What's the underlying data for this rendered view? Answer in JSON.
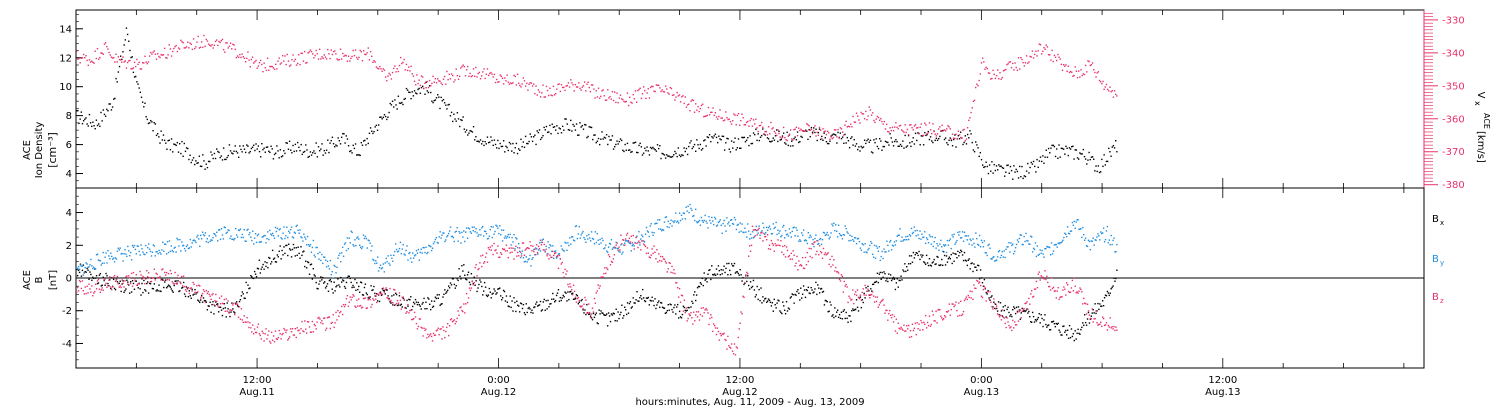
{
  "colors": {
    "black": "#000000",
    "pink": "#e8336a",
    "blue": "#1f8ee0"
  },
  "x_axis": {
    "title": "hours:minutes, Aug. 11, 2009 - Aug. 13, 2009",
    "range_hours": [
      3,
      70
    ],
    "major_ticks": [
      {
        "hour": 12,
        "time": "12:00",
        "date": "Aug.11"
      },
      {
        "hour": 24,
        "time": "0:00",
        "date": "Aug.12"
      },
      {
        "hour": 36,
        "time": "12:00",
        "date": "Aug.12"
      },
      {
        "hour": 48,
        "time": "0:00",
        "date": "Aug.13"
      },
      {
        "hour": 60,
        "time": "12:00",
        "date": "Aug.13"
      }
    ]
  },
  "chart_data": [
    {
      "type": "scatter",
      "panel": "top",
      "ylabel_left": [
        "ACE",
        "Ion Density",
        "[cm⁻³]"
      ],
      "ylabel_right": [
        "V",
        "x",
        "ACE",
        "[km/s]"
      ],
      "ylim_left": [
        3,
        15.3
      ],
      "ylim_right": [
        -381,
        -327
      ],
      "yticks_left": [
        4,
        6,
        8,
        10,
        12,
        14
      ],
      "yticks_right": [
        -330,
        -340,
        -350,
        -360,
        -370,
        -380
      ],
      "series": [
        {
          "axis": "left",
          "color": "#000000",
          "x": [
            3.0,
            4.0,
            4.8,
            5.5,
            6.0,
            6.5,
            7.0,
            7.6,
            8.2,
            8.8,
            9.4,
            10.0,
            10.8,
            11.5,
            12.3,
            13.0,
            13.8,
            14.6,
            15.4,
            16.2,
            17.0,
            17.8,
            18.5,
            19.1,
            19.7,
            20.3,
            21.0,
            21.8,
            22.6,
            23.4,
            24.2,
            25.0,
            25.8,
            26.6,
            27.4,
            28.2,
            29.0,
            29.8,
            30.6,
            31.4,
            32.2,
            33.0,
            33.8,
            34.6,
            35.4,
            36.2,
            37.0,
            37.8,
            38.6,
            39.4,
            40.2,
            41.0,
            41.8,
            42.6,
            43.4,
            44.2,
            45.0,
            45.8,
            46.6,
            47.4,
            48.2,
            49.0,
            49.8,
            50.6,
            51.4,
            52.2,
            53.0,
            53.8,
            54.7
          ],
          "y": [
            8.0,
            7.5,
            9.0,
            14.0,
            10.0,
            8.0,
            6.8,
            6.0,
            5.8,
            5.2,
            4.8,
            5.4,
            5.6,
            5.6,
            5.7,
            5.5,
            5.9,
            5.6,
            5.8,
            6.5,
            5.5,
            7.2,
            8.4,
            9.2,
            9.8,
            10.0,
            9.0,
            8.0,
            7.0,
            6.3,
            6.0,
            5.9,
            6.5,
            7.2,
            7.4,
            7.0,
            6.5,
            6.1,
            5.8,
            5.6,
            5.5,
            5.7,
            6.0,
            6.5,
            6.0,
            6.3,
            6.8,
            6.6,
            6.4,
            6.9,
            6.5,
            6.6,
            6.0,
            5.9,
            6.3,
            6.2,
            6.5,
            6.7,
            6.3,
            6.6,
            4.5,
            4.2,
            4.1,
            4.4,
            5.5,
            5.6,
            5.4,
            4.5,
            6.0
          ]
        },
        {
          "axis": "right",
          "color": "#e8336a",
          "x": [
            3.0,
            3.7,
            4.4,
            5.0,
            5.6,
            6.2,
            6.8,
            7.4,
            8.0,
            8.8,
            9.6,
            10.4,
            11.2,
            12.0,
            12.8,
            13.6,
            14.4,
            15.2,
            16.0,
            16.8,
            17.6,
            18.4,
            19.2,
            20.0,
            20.8,
            21.6,
            22.4,
            23.2,
            24.0,
            24.8,
            25.6,
            26.4,
            27.2,
            28.0,
            28.8,
            29.6,
            30.4,
            31.2,
            32.0,
            32.8,
            33.6,
            34.4,
            35.2,
            36.0,
            36.8,
            37.6,
            38.4,
            39.2,
            40.0,
            40.8,
            41.6,
            42.4,
            43.2,
            44.0,
            44.8,
            45.6,
            46.4,
            47.2,
            48.0,
            48.6,
            49.2,
            49.8,
            50.4,
            51.0,
            51.6,
            52.2,
            52.8,
            53.4,
            54.0,
            54.7
          ],
          "y": [
            -341,
            -342,
            -338,
            -342,
            -343,
            -343,
            -341,
            -340,
            -338,
            -337,
            -336,
            -338,
            -340,
            -344,
            -343,
            -342,
            -341,
            -340,
            -340,
            -341,
            -340,
            -348,
            -342,
            -349,
            -348,
            -347,
            -345,
            -346,
            -348,
            -348,
            -350,
            -352,
            -350,
            -349,
            -352,
            -353,
            -354,
            -352,
            -351,
            -353,
            -356,
            -358,
            -359,
            -360,
            -362,
            -363,
            -365,
            -363,
            -364,
            -365,
            -360,
            -358,
            -362,
            -363,
            -363,
            -363,
            -364,
            -365,
            -343,
            -347,
            -345,
            -343,
            -341,
            -338,
            -341,
            -345,
            -346,
            -343,
            -349,
            -352
          ]
        }
      ]
    },
    {
      "type": "scatter",
      "panel": "bottom",
      "ylabel_left": [
        "ACE",
        "B",
        "[nT]"
      ],
      "ylim": [
        -5.5,
        5.5
      ],
      "yticks": [
        -4,
        -2,
        0,
        2,
        4
      ],
      "legend": [
        "B",
        "B",
        "B"
      ],
      "legend_sub": [
        "x",
        "y",
        "z"
      ],
      "series": [
        {
          "color": "#000000",
          "x": [
            3.0,
            3.8,
            4.6,
            5.4,
            6.2,
            7.0,
            7.8,
            8.6,
            9.4,
            10.2,
            11.0,
            11.8,
            12.6,
            13.4,
            14.2,
            15.0,
            15.8,
            16.6,
            17.4,
            18.2,
            19.0,
            19.8,
            20.6,
            21.4,
            22.2,
            23.0,
            23.8,
            24.6,
            25.4,
            26.2,
            27.0,
            27.8,
            28.6,
            29.4,
            30.2,
            31.0,
            31.8,
            32.6,
            33.4,
            34.2,
            35.0,
            35.8,
            36.6,
            37.4,
            38.2,
            39.0,
            39.8,
            40.6,
            41.4,
            42.2,
            43.0,
            43.8,
            44.6,
            45.4,
            46.2,
            47.0,
            47.8,
            48.6,
            49.4,
            50.2,
            51.0,
            51.8,
            52.6,
            53.4,
            54.2,
            54.7
          ],
          "y": [
            0.6,
            0.2,
            -0.2,
            -0.4,
            -0.6,
            -0.3,
            -0.5,
            -0.7,
            -1.5,
            -2.0,
            -1.8,
            0.4,
            1.2,
            1.8,
            1.5,
            -0.3,
            -0.5,
            -0.2,
            -0.8,
            -1.0,
            -1.3,
            -1.5,
            -1.6,
            -1.0,
            0.6,
            -0.5,
            -0.8,
            -1.5,
            -2.0,
            -1.6,
            -1.0,
            -1.3,
            -2.2,
            -2.5,
            -2.0,
            -1.0,
            -1.6,
            -1.8,
            -2.2,
            0.2,
            0.5,
            0.6,
            -0.5,
            -1.5,
            -1.8,
            -0.8,
            -0.6,
            -2.0,
            -2.3,
            -1.0,
            0.4,
            -0.4,
            1.6,
            0.9,
            1.3,
            1.4,
            0.6,
            -1.8,
            -2.0,
            -2.2,
            -2.5,
            -3.0,
            -3.4,
            -2.2,
            -1.2,
            0.5
          ]
        },
        {
          "color": "#1f8ee0",
          "x": [
            3.0,
            3.8,
            4.6,
            5.4,
            6.2,
            7.0,
            7.8,
            8.6,
            9.4,
            10.2,
            11.0,
            11.8,
            12.6,
            13.4,
            14.2,
            15.0,
            15.8,
            16.6,
            17.4,
            18.2,
            19.0,
            19.8,
            20.6,
            21.4,
            22.2,
            23.0,
            23.8,
            24.6,
            25.4,
            26.2,
            27.0,
            27.8,
            28.6,
            29.4,
            30.2,
            31.0,
            31.8,
            32.6,
            33.4,
            34.2,
            35.0,
            35.8,
            36.6,
            37.4,
            38.2,
            39.0,
            39.8,
            40.6,
            41.4,
            42.2,
            43.0,
            43.8,
            44.6,
            45.4,
            46.2,
            47.0,
            47.8,
            48.6,
            49.4,
            50.2,
            51.0,
            51.8,
            52.6,
            53.4,
            54.2,
            54.7
          ],
          "y": [
            0.4,
            0.9,
            1.4,
            1.5,
            1.7,
            1.8,
            2.0,
            2.1,
            2.5,
            2.8,
            2.7,
            2.5,
            2.6,
            2.9,
            2.8,
            1.5,
            0.4,
            2.5,
            2.2,
            0.5,
            2.0,
            1.2,
            2.0,
            2.8,
            2.6,
            2.8,
            2.9,
            2.5,
            1.0,
            2.0,
            1.5,
            2.8,
            2.6,
            2.0,
            1.8,
            2.5,
            3.2,
            3.6,
            4.2,
            3.5,
            3.2,
            3.4,
            2.7,
            3.2,
            2.9,
            2.6,
            2.2,
            3.0,
            2.7,
            2.0,
            1.5,
            2.6,
            2.8,
            2.4,
            2.0,
            2.6,
            2.3,
            1.5,
            1.8,
            2.5,
            1.4,
            2.3,
            3.5,
            2.0,
            2.8,
            1.8
          ]
        },
        {
          "color": "#e8336a",
          "x": [
            3.0,
            3.8,
            4.6,
            5.4,
            6.2,
            7.0,
            7.8,
            8.6,
            9.4,
            10.2,
            11.0,
            11.8,
            12.6,
            13.4,
            14.2,
            15.0,
            15.8,
            16.6,
            17.4,
            18.2,
            19.0,
            19.8,
            20.6,
            21.4,
            22.2,
            23.0,
            23.8,
            24.6,
            25.4,
            26.2,
            27.0,
            27.8,
            28.6,
            29.4,
            30.2,
            31.0,
            31.8,
            32.6,
            33.4,
            34.2,
            35.0,
            35.8,
            36.6,
            37.4,
            38.2,
            39.0,
            39.8,
            40.6,
            41.4,
            42.2,
            43.0,
            43.8,
            44.6,
            45.4,
            46.2,
            47.0,
            47.8,
            48.6,
            49.4,
            50.2,
            51.0,
            51.8,
            52.6,
            53.4,
            54.2,
            54.7
          ],
          "y": [
            -0.4,
            -0.6,
            -0.3,
            -0.1,
            0.0,
            0.2,
            0.1,
            -0.5,
            -1.0,
            -1.5,
            -2.0,
            -3.0,
            -3.6,
            -3.4,
            -3.0,
            -2.8,
            -2.6,
            -1.2,
            -1.5,
            -0.9,
            -1.2,
            -2.5,
            -3.6,
            -3.2,
            -2.0,
            1.0,
            1.8,
            1.6,
            1.8,
            2.0,
            1.0,
            -1.0,
            -2.0,
            1.0,
            2.5,
            2.0,
            1.5,
            0.5,
            -2.5,
            -2.0,
            -3.5,
            -4.5,
            3.0,
            2.2,
            1.8,
            0.8,
            2.0,
            1.0,
            -1.2,
            -0.8,
            -1.5,
            -3.0,
            -3.2,
            -2.5,
            -2.0,
            -1.8,
            -0.4,
            -1.5,
            -3.0,
            -1.8,
            0.5,
            -1.0,
            -0.4,
            -2.2,
            -2.8,
            -2.8
          ]
        }
      ]
    }
  ]
}
